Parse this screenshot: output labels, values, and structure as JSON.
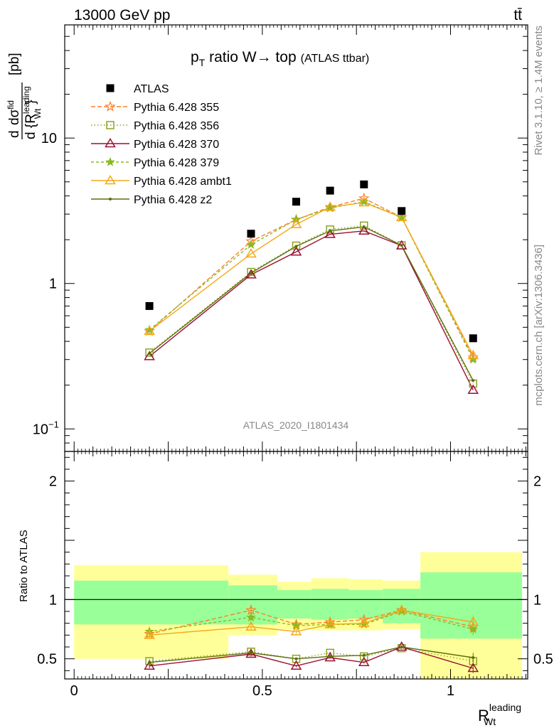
{
  "header": {
    "left": "13000 GeV pp",
    "right": "tt̄",
    "side_top": "Rivet 3.1.10, ≥ 1.4M events",
    "side_bottom": "mcplots.cern.ch [arXiv:1306.3436]"
  },
  "chart_data": [
    {
      "type": "scatter",
      "panel": "main",
      "title": "p_T ratio W→ top (ATLAS ttbar)",
      "title_main": "p",
      "title_sub": "T",
      "title_rest": " ratio W",
      "title_arrow": "→",
      "title_top": " top",
      "title_small": "(ATLAS ttbar)",
      "ylabel": "dσ^fid / d{R_Wt^leading} [pb]",
      "ylabel_num": "dσ",
      "ylabel_num_sup": "fid",
      "ylabel_den": "d {R",
      "ylabel_den_sup": "leading",
      "ylabel_den_sub": "Wt",
      "ylabel_den_end": "}",
      "ylabel_unit": "[pb]",
      "yscale": "log",
      "ylim": [
        0.07,
        60
      ],
      "yticks": [
        {
          "value": 0.1,
          "label": "10",
          "sup": "−1"
        },
        {
          "value": 1,
          "label": "1",
          "sup": ""
        },
        {
          "value": 10,
          "label": "10",
          "sup": ""
        }
      ],
      "watermark": "ATLAS_2020_I1801434",
      "x": [
        0.2,
        0.47,
        0.59,
        0.68,
        0.77,
        0.87,
        1.06
      ],
      "series": [
        {
          "name": "ATLAS",
          "color": "#000000",
          "marker": "square",
          "dash": "none",
          "values": [
            0.7,
            2.2,
            3.65,
            4.35,
            4.8,
            3.15,
            0.42
          ]
        },
        {
          "name": "Pythia 6.428 355",
          "color": "#ff7f2a",
          "marker": "star-open",
          "dash": "6,3",
          "values": [
            0.47,
            1.95,
            2.75,
            3.35,
            3.85,
            2.85,
            0.31
          ]
        },
        {
          "name": "Pythia 6.428 356",
          "color": "#8ca51f",
          "marker": "square-open",
          "dash": "1.5,3",
          "values": [
            0.335,
            1.2,
            1.82,
            2.35,
            2.5,
            1.83,
            0.205
          ]
        },
        {
          "name": "Pythia 6.428 370",
          "color": "#991133",
          "marker": "triangle-open",
          "dash": "none",
          "values": [
            0.315,
            1.15,
            1.65,
            2.18,
            2.3,
            1.82,
            0.185
          ]
        },
        {
          "name": "Pythia 6.428 379",
          "color": "#88bb22",
          "marker": "star",
          "dash": "4,3",
          "values": [
            0.48,
            1.85,
            2.75,
            3.3,
            3.65,
            2.85,
            0.3
          ]
        },
        {
          "name": "Pythia 6.428 ambt1",
          "color": "#f5a818",
          "marker": "triangle-open",
          "dash": "none",
          "values": [
            0.47,
            1.6,
            2.55,
            3.35,
            3.6,
            2.85,
            0.32
          ]
        },
        {
          "name": "Pythia 6.428 z2",
          "color": "#5c6e0b",
          "marker": "dot",
          "dash": "none",
          "values": [
            0.33,
            1.18,
            1.8,
            2.3,
            2.45,
            1.83,
            0.215
          ]
        }
      ]
    },
    {
      "type": "scatter",
      "panel": "ratio",
      "ylabel": "Ratio to ATLAS",
      "xlabel": "R_Wt^leading",
      "xlabel_main": "R",
      "xlabel_sup": "leading",
      "xlabel_sub": "Wt",
      "xlim": [
        -0.025,
        1.205
      ],
      "ylim": [
        0.33,
        2.25
      ],
      "xticks": [
        {
          "value": 0,
          "label": "0"
        },
        {
          "value": 0.5,
          "label": "0.5"
        },
        {
          "value": 1,
          "label": "1"
        }
      ],
      "yticks": [
        {
          "value": 0.5,
          "label": "0.5"
        },
        {
          "value": 1,
          "label": "1"
        },
        {
          "value": 2,
          "label": "2"
        }
      ],
      "bins": [
        {
          "lo": 0.0,
          "hi": 0.41,
          "green": [
            0.79,
            1.16
          ],
          "yellow": [
            0.5,
            1.29
          ]
        },
        {
          "lo": 0.41,
          "hi": 0.54,
          "green": [
            0.79,
            1.12
          ],
          "yellow": [
            0.7,
            1.21
          ]
        },
        {
          "lo": 0.54,
          "hi": 0.63,
          "green": [
            0.84,
            1.08
          ],
          "yellow": [
            0.75,
            1.15
          ]
        },
        {
          "lo": 0.63,
          "hi": 0.73,
          "green": [
            0.83,
            1.09
          ],
          "yellow": [
            0.74,
            1.18
          ]
        },
        {
          "lo": 0.73,
          "hi": 0.82,
          "green": [
            0.84,
            1.08
          ],
          "yellow": [
            0.74,
            1.17
          ]
        },
        {
          "lo": 0.82,
          "hi": 0.92,
          "green": [
            0.8,
            1.09
          ],
          "yellow": [
            0.75,
            1.16
          ]
        },
        {
          "lo": 0.92,
          "hi": 1.19,
          "green": [
            0.67,
            1.23
          ],
          "yellow": [
            0.33,
            1.4
          ]
        }
      ],
      "series": [
        {
          "name": "Pythia 6.428 355",
          "values": [
            0.71,
            0.91,
            0.79,
            0.81,
            0.83,
            0.91,
            0.77
          ],
          "err": [
            0.03,
            0.03,
            0.02,
            0.02,
            0.02,
            0.02,
            0.05
          ]
        },
        {
          "name": "Pythia 6.428 356",
          "values": [
            0.48,
            0.56,
            0.5,
            0.55,
            0.52,
            0.59,
            0.48
          ],
          "err": [
            0.02,
            0.02,
            0.01,
            0.01,
            0.01,
            0.01,
            0.04
          ]
        },
        {
          "name": "Pythia 6.428 370",
          "values": [
            0.44,
            0.54,
            0.44,
            0.51,
            0.47,
            0.6,
            0.42
          ],
          "err": [
            0.02,
            0.02,
            0.01,
            0.01,
            0.01,
            0.01,
            0.04
          ]
        },
        {
          "name": "Pythia 6.428 379",
          "values": [
            0.73,
            0.85,
            0.78,
            0.79,
            0.79,
            0.9,
            0.75
          ],
          "err": [
            0.03,
            0.03,
            0.02,
            0.02,
            0.02,
            0.02,
            0.05
          ]
        },
        {
          "name": "Pythia 6.428 ambt1",
          "values": [
            0.7,
            0.77,
            0.73,
            0.79,
            0.8,
            0.91,
            0.81
          ],
          "err": [
            0.03,
            0.03,
            0.02,
            0.02,
            0.02,
            0.02,
            0.05
          ]
        },
        {
          "name": "Pythia 6.428 z2",
          "values": [
            0.47,
            0.55,
            0.5,
            0.52,
            0.53,
            0.6,
            0.51
          ],
          "err": [
            0.02,
            0.02,
            0.01,
            0.01,
            0.01,
            0.01,
            0.04
          ]
        }
      ]
    }
  ]
}
